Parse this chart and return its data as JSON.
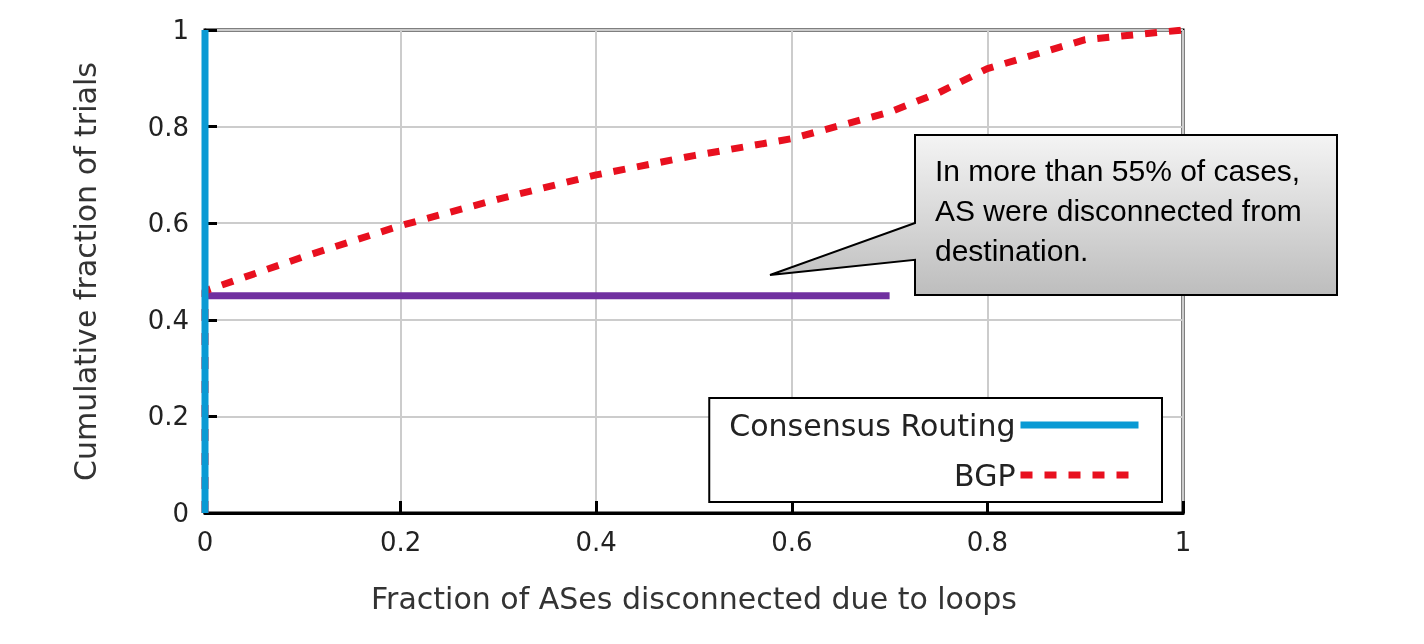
{
  "chart_data": {
    "type": "line",
    "xlabel": "Fraction of ASes disconnected due to loops",
    "ylabel": "Cumulative fraction of trials",
    "xlim": [
      0,
      1
    ],
    "ylim": [
      0,
      1
    ],
    "xticks": [
      0,
      0.2,
      0.4,
      0.6,
      0.8,
      1
    ],
    "yticks": [
      0,
      0.2,
      0.4,
      0.6,
      0.8,
      1
    ],
    "grid": true,
    "legend": "bottom right",
    "marker": "none",
    "series": [
      {
        "name": "Consensus Routing",
        "color": "#0a9ad4",
        "line_style": "solid",
        "x": [
          0,
          0
        ],
        "values": [
          0,
          1
        ]
      },
      {
        "name": "BGP",
        "color": "#e8101f",
        "line_style": "dashed",
        "x": [
          0,
          0,
          0.1,
          0.2,
          0.3,
          0.4,
          0.5,
          0.6,
          0.7,
          0.75,
          0.8,
          0.9,
          1
        ],
        "values": [
          0,
          0.46,
          0.53,
          0.595,
          0.65,
          0.7,
          0.74,
          0.775,
          0.83,
          0.87,
          0.92,
          0.98,
          1
        ]
      },
      {
        "color": "#7030a0",
        "line_style": "solid",
        "x": [
          0,
          0.7
        ],
        "values": [
          0.45,
          0.45
        ]
      }
    ],
    "annotations": [
      "In more than 55% of cases, AS were disconnected from destination."
    ]
  }
}
